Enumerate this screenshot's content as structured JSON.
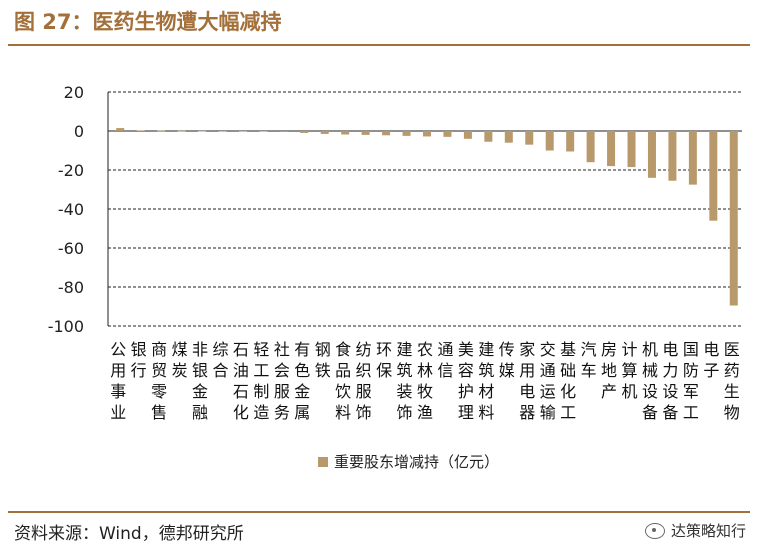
{
  "header": {
    "title": "图 27：医药生物遭大幅减持"
  },
  "footer": {
    "source": "资料来源：Wind，德邦研究所",
    "watermark": "达策略知行"
  },
  "colors": {
    "accent": "#a4703a",
    "bar": "#b8996b"
  },
  "chart_data": {
    "type": "bar",
    "title": "",
    "xlabel": "",
    "ylabel": "",
    "ylim": [
      -100,
      20
    ],
    "yticks": [
      20,
      0,
      -20,
      -40,
      -60,
      -80,
      -100
    ],
    "grid": true,
    "legend_position": "bottom",
    "categories": [
      "公用事业",
      "银行",
      "商贸零售",
      "煤炭",
      "非银金融",
      "综合",
      "石油石化",
      "轻工制造",
      "社会服务",
      "有色金属",
      "钢铁",
      "食品饮料",
      "纺织服饰",
      "环保",
      "建筑装饰",
      "农林牧渔",
      "通信",
      "美容护理",
      "建筑材料",
      "传媒",
      "家用电器",
      "交通运输",
      "基础化工",
      "汽车",
      "房地产",
      "计算机",
      "机械设备",
      "电力设备",
      "国防军工",
      "电子",
      "医药生物"
    ],
    "series": [
      {
        "name": "重要股东增减持（亿元）",
        "values": [
          1.5,
          0.3,
          0.2,
          0.1,
          0.05,
          0.0,
          -0.2,
          -0.3,
          -0.5,
          -1.0,
          -1.5,
          -1.8,
          -2.0,
          -2.2,
          -2.5,
          -2.8,
          -3.0,
          -4.0,
          -5.5,
          -6.0,
          -7.0,
          -10.0,
          -10.5,
          -16.0,
          -18.0,
          -18.5,
          -24.0,
          -25.5,
          -27.5,
          -46.0,
          -89.5
        ]
      }
    ]
  }
}
